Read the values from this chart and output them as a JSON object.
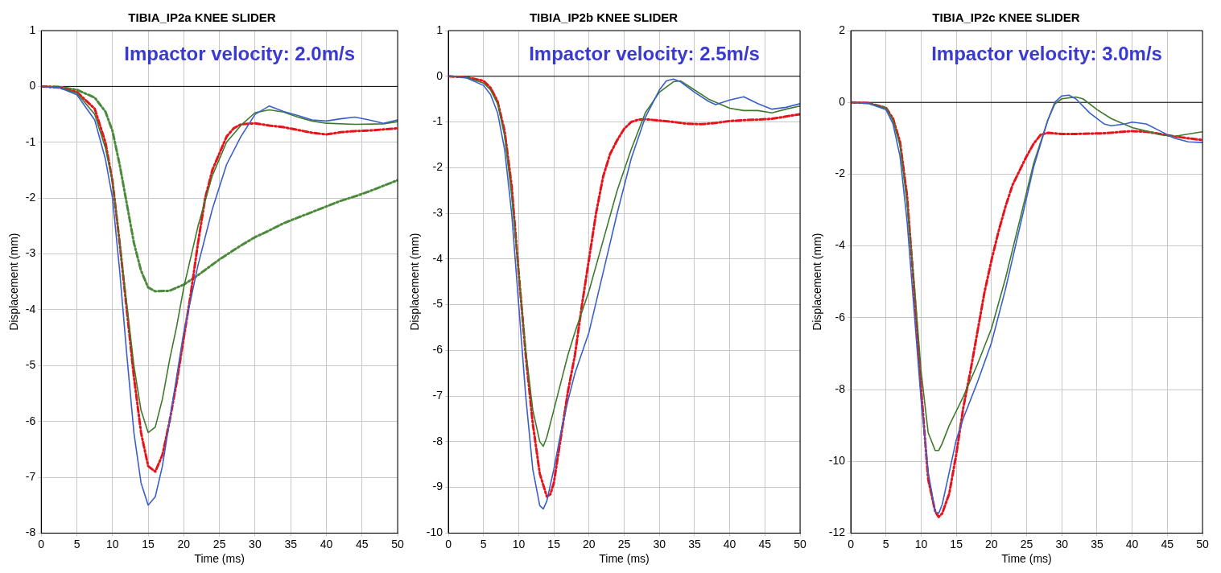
{
  "chart_data": [
    {
      "type": "line",
      "title": "TIBIA_IP2a KNEE SLIDER",
      "xlabel": "Time (ms)",
      "ylabel": "Displacement (mm)",
      "annotations": [
        "Impactor velocity: 2.0m/s"
      ],
      "xlim": [
        0,
        50
      ],
      "xticks": [
        0,
        5,
        10,
        15,
        20,
        25,
        30,
        35,
        40,
        45,
        50
      ],
      "ylim": [
        -8,
        1
      ],
      "yticks": [
        -8,
        -7,
        -6,
        -5,
        -4,
        -3,
        -2,
        -1,
        0,
        1
      ],
      "grid": true,
      "ref_lines": [
        {
          "axis": "y",
          "value": 0,
          "color": "#000000"
        }
      ],
      "series": [
        {
          "color": "#3a5fc8",
          "line_style": "solid",
          "x": [
            0,
            2.5,
            5,
            7.5,
            9,
            10,
            11,
            12,
            13,
            14,
            15,
            16,
            17,
            18,
            19,
            20,
            22,
            24,
            26,
            28,
            30,
            32,
            34,
            36,
            38,
            40,
            42,
            44,
            46,
            48,
            50
          ],
          "values": [
            0,
            -0.02,
            -0.15,
            -0.6,
            -1.3,
            -2.0,
            -3.3,
            -4.8,
            -6.2,
            -7.1,
            -7.5,
            -7.35,
            -6.8,
            -6.0,
            -5.2,
            -4.4,
            -3.2,
            -2.2,
            -1.4,
            -0.9,
            -0.5,
            -0.35,
            -0.45,
            -0.52,
            -0.6,
            -0.62,
            -0.58,
            -0.55,
            -0.6,
            -0.66,
            -0.6
          ]
        },
        {
          "color": "#3c7a2a",
          "line_style": "solid",
          "x": [
            0,
            2.5,
            5,
            7.5,
            9,
            10,
            11,
            12,
            13,
            14,
            15,
            16,
            17,
            18,
            19,
            20,
            22,
            24,
            26,
            28,
            30,
            32,
            34,
            36,
            38,
            40,
            44,
            48,
            50
          ],
          "values": [
            0,
            -0.02,
            -0.12,
            -0.5,
            -1.1,
            -1.7,
            -2.8,
            -3.9,
            -5.0,
            -5.8,
            -6.2,
            -6.1,
            -5.6,
            -4.9,
            -4.3,
            -3.6,
            -2.5,
            -1.6,
            -1.0,
            -0.7,
            -0.47,
            -0.42,
            -0.46,
            -0.55,
            -0.62,
            -0.66,
            -0.68,
            -0.67,
            -0.63
          ]
        },
        {
          "color": "#e8121a",
          "line_style": "dashed",
          "x": [
            0,
            2.5,
            5,
            7.5,
            9,
            10,
            11,
            12,
            13,
            14,
            15,
            16,
            17,
            18,
            19,
            20,
            21,
            22,
            23,
            24,
            25,
            26,
            27,
            28,
            30,
            32,
            34,
            36,
            38,
            40,
            42,
            44,
            46,
            48,
            50
          ],
          "values": [
            0,
            -0.02,
            -0.1,
            -0.4,
            -1.0,
            -1.7,
            -2.8,
            -4.0,
            -5.2,
            -6.2,
            -6.8,
            -6.9,
            -6.6,
            -6.0,
            -5.3,
            -4.5,
            -3.7,
            -2.8,
            -2.0,
            -1.5,
            -1.2,
            -0.9,
            -0.75,
            -0.68,
            -0.66,
            -0.7,
            -0.73,
            -0.78,
            -0.83,
            -0.86,
            -0.82,
            -0.8,
            -0.79,
            -0.77,
            -0.75
          ]
        },
        {
          "color": "#4a8a3a",
          "line_style": "dashed",
          "x": [
            0,
            2.5,
            5,
            7.5,
            9,
            10,
            11,
            12,
            13,
            14,
            15,
            16,
            18,
            20,
            22,
            25,
            28,
            30,
            32,
            34,
            36,
            38,
            40,
            42,
            44,
            46,
            48,
            50
          ],
          "values": [
            0,
            -0.01,
            -0.06,
            -0.2,
            -0.45,
            -0.8,
            -1.4,
            -2.1,
            -2.8,
            -3.3,
            -3.6,
            -3.67,
            -3.66,
            -3.55,
            -3.38,
            -3.1,
            -2.85,
            -2.7,
            -2.58,
            -2.45,
            -2.35,
            -2.25,
            -2.15,
            -2.05,
            -1.97,
            -1.88,
            -1.78,
            -1.68
          ]
        }
      ]
    },
    {
      "type": "line",
      "title": "TIBIA_IP2b KNEE SLIDER",
      "xlabel": "Time (ms)",
      "ylabel": "Displacement (mm)",
      "annotations": [
        "Impactor velocity: 2.5m/s"
      ],
      "xlim": [
        0,
        50
      ],
      "xticks": [
        0,
        5,
        10,
        15,
        20,
        25,
        30,
        35,
        40,
        45,
        50
      ],
      "ylim": [
        -10,
        1
      ],
      "yticks": [
        -10,
        -9,
        -8,
        -7,
        -6,
        -5,
        -4,
        -3,
        -2,
        -1,
        0,
        1
      ],
      "grid": true,
      "ref_lines": [
        {
          "axis": "y",
          "value": 0,
          "color": "#000000"
        }
      ],
      "series": [
        {
          "color": "#3a5fc8",
          "line_style": "solid",
          "x": [
            0,
            2.5,
            5,
            6,
            7,
            8,
            9,
            10,
            11,
            12,
            13,
            13.5,
            14,
            15,
            16,
            17,
            18,
            20,
            22,
            24,
            26,
            28,
            30,
            31,
            32,
            33,
            35,
            37,
            38,
            40,
            42,
            44,
            46,
            48,
            50
          ],
          "values": [
            0,
            -0.03,
            -0.2,
            -0.4,
            -0.8,
            -1.6,
            -3.0,
            -5.0,
            -7.0,
            -8.6,
            -9.4,
            -9.47,
            -9.3,
            -8.6,
            -7.8,
            -7.1,
            -6.5,
            -5.6,
            -4.3,
            -3.0,
            -1.8,
            -0.9,
            -0.3,
            -0.1,
            -0.06,
            -0.12,
            -0.35,
            -0.55,
            -0.62,
            -0.52,
            -0.45,
            -0.6,
            -0.72,
            -0.68,
            -0.6
          ]
        },
        {
          "color": "#3c7a2a",
          "line_style": "solid",
          "x": [
            0,
            2.5,
            5,
            6,
            7,
            8,
            9,
            10,
            11,
            12,
            13,
            13.5,
            14,
            15,
            16,
            17,
            18,
            20,
            22,
            24,
            26,
            28,
            30,
            32,
            33,
            35,
            37,
            40,
            42,
            44,
            46,
            48,
            50
          ],
          "values": [
            0,
            -0.02,
            -0.15,
            -0.3,
            -0.6,
            -1.3,
            -2.6,
            -4.3,
            -6.0,
            -7.3,
            -8.0,
            -8.1,
            -7.9,
            -7.3,
            -6.7,
            -6.1,
            -5.6,
            -4.7,
            -3.6,
            -2.5,
            -1.6,
            -0.8,
            -0.35,
            -0.12,
            -0.1,
            -0.3,
            -0.5,
            -0.7,
            -0.75,
            -0.75,
            -0.8,
            -0.72,
            -0.65
          ]
        },
        {
          "color": "#e8121a",
          "line_style": "dashed",
          "x": [
            0,
            2.5,
            5,
            6,
            7,
            8,
            9,
            10,
            11,
            12,
            13,
            14,
            14.5,
            15,
            16,
            17,
            18,
            19,
            20,
            21,
            22,
            23,
            24,
            25,
            26,
            27,
            28,
            30,
            32,
            34,
            36,
            38,
            40,
            42,
            44,
            46,
            48,
            50
          ],
          "values": [
            0,
            -0.02,
            -0.1,
            -0.25,
            -0.55,
            -1.2,
            -2.4,
            -4.3,
            -6.1,
            -7.6,
            -8.7,
            -9.2,
            -9.15,
            -8.9,
            -7.9,
            -6.9,
            -6.1,
            -5.0,
            -4.0,
            -3.0,
            -2.2,
            -1.7,
            -1.4,
            -1.15,
            -1.0,
            -0.95,
            -0.94,
            -0.97,
            -1.0,
            -1.04,
            -1.05,
            -1.02,
            -0.98,
            -0.96,
            -0.95,
            -0.93,
            -0.88,
            -0.83
          ]
        }
      ]
    },
    {
      "type": "line",
      "title": "TIBIA_IP2c KNEE SLIDER",
      "xlabel": "Time (ms)",
      "ylabel": "Displacement (mm)",
      "annotations": [
        "Impactor velocity: 3.0m/s"
      ],
      "xlim": [
        0,
        50
      ],
      "xticks": [
        0,
        5,
        10,
        15,
        20,
        25,
        30,
        35,
        40,
        45,
        50
      ],
      "ylim": [
        -12,
        2
      ],
      "yticks": [
        -12,
        -10,
        -8,
        -6,
        -4,
        -2,
        0,
        2
      ],
      "grid": true,
      "ref_lines": [
        {
          "axis": "y",
          "value": 0,
          "color": "#000000"
        }
      ],
      "series": [
        {
          "color": "#3a5fc8",
          "line_style": "solid",
          "x": [
            0,
            2.5,
            5,
            6,
            7,
            8,
            9,
            10,
            11,
            12,
            12.5,
            13,
            14,
            15,
            16,
            18,
            20,
            22,
            24,
            26,
            28,
            29,
            30,
            31,
            32,
            34,
            36,
            37,
            39,
            40,
            42,
            44,
            46,
            48,
            50
          ],
          "values": [
            0,
            -0.03,
            -0.2,
            -0.6,
            -1.5,
            -3.3,
            -5.8,
            -8.3,
            -10.3,
            -11.4,
            -11.45,
            -11.2,
            -10.3,
            -9.4,
            -8.8,
            -7.8,
            -6.7,
            -5.2,
            -3.5,
            -1.8,
            -0.5,
            0.0,
            0.18,
            0.2,
            0.1,
            -0.3,
            -0.6,
            -0.65,
            -0.6,
            -0.55,
            -0.6,
            -0.8,
            -1.0,
            -1.1,
            -1.12
          ]
        },
        {
          "color": "#3c7a2a",
          "line_style": "solid",
          "x": [
            0,
            2.5,
            5,
            6,
            7,
            8,
            9,
            10,
            11,
            12,
            12.5,
            13,
            14,
            15,
            16,
            18,
            20,
            22,
            24,
            26,
            28,
            29,
            30,
            32,
            33,
            35,
            37,
            40,
            42,
            44,
            46,
            48,
            50
          ],
          "values": [
            0,
            -0.02,
            -0.15,
            -0.5,
            -1.2,
            -2.8,
            -5.0,
            -7.5,
            -9.2,
            -9.7,
            -9.7,
            -9.5,
            -9.0,
            -8.6,
            -8.2,
            -7.3,
            -6.3,
            -4.9,
            -3.3,
            -1.7,
            -0.5,
            -0.05,
            0.1,
            0.15,
            0.1,
            -0.2,
            -0.45,
            -0.7,
            -0.8,
            -0.9,
            -0.95,
            -0.88,
            -0.82
          ]
        },
        {
          "color": "#e8121a",
          "line_style": "dashed",
          "x": [
            0,
            2.5,
            5,
            6,
            7,
            8,
            9,
            10,
            11,
            12,
            12.5,
            13,
            14,
            15,
            16,
            17,
            18,
            19,
            20,
            21,
            22,
            23,
            24,
            25,
            26,
            27,
            28,
            30,
            32,
            34,
            36,
            38,
            40,
            42,
            44,
            46,
            48,
            50
          ],
          "values": [
            0,
            -0.02,
            -0.15,
            -0.45,
            -1.1,
            -2.6,
            -5.2,
            -8.0,
            -10.5,
            -11.4,
            -11.55,
            -11.45,
            -10.9,
            -9.8,
            -8.5,
            -7.5,
            -6.4,
            -5.3,
            -4.4,
            -3.6,
            -2.9,
            -2.3,
            -1.9,
            -1.5,
            -1.15,
            -0.9,
            -0.85,
            -0.88,
            -0.88,
            -0.87,
            -0.86,
            -0.83,
            -0.8,
            -0.82,
            -0.88,
            -0.95,
            -1.0,
            -1.05
          ]
        }
      ]
    }
  ]
}
